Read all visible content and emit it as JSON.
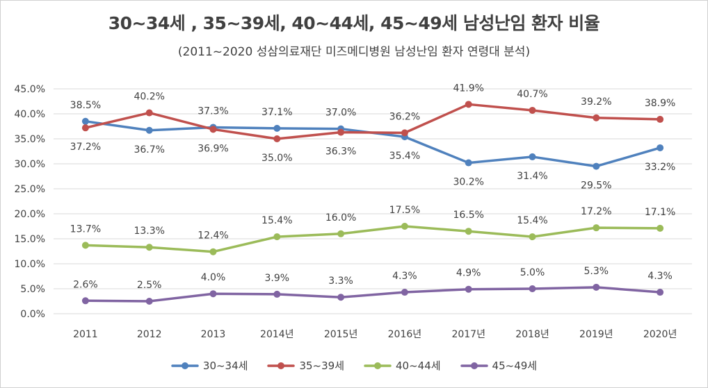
{
  "chart_data": {
    "type": "line",
    "title": "30~34세 , 35~39세, 40~44세, 45~49세 남성난임 환자 비율",
    "subtitle": "(2011~2020 성삼의료재단 미즈메디병원 남성난임 환자 연령대 분석)",
    "categories": [
      "2011",
      "2012",
      "2013",
      "2014년",
      "2015년",
      "2016년",
      "2017년",
      "2018년",
      "2019년",
      "2020년"
    ],
    "ylim": [
      0,
      45
    ],
    "yticks": [
      0,
      5,
      10,
      15,
      20,
      25,
      30,
      35,
      40,
      45
    ],
    "ytick_labels": [
      "0.0%",
      "5.0%",
      "10.0%",
      "15.0%",
      "20.0%",
      "25.0%",
      "30.0%",
      "35.0%",
      "40.0%",
      "45.0%"
    ],
    "grid": true,
    "legend_position": "bottom",
    "series": [
      {
        "name": "30~34세",
        "color": "#4f81bd",
        "values": [
          38.5,
          36.7,
          37.3,
          37.1,
          37.0,
          35.4,
          30.2,
          31.4,
          29.5,
          33.2
        ],
        "labels": [
          "38.5%",
          "36.7%",
          "37.3%",
          "37.1%",
          "37.0%",
          "35.4%",
          "30.2%",
          "31.4%",
          "29.5%",
          "33.2%"
        ],
        "label_pos": [
          "above",
          "below",
          "above",
          "above",
          "above",
          "below",
          "below",
          "below",
          "below",
          "below"
        ]
      },
      {
        "name": "35~39세",
        "color": "#c0504d",
        "values": [
          37.2,
          40.2,
          36.9,
          35.0,
          36.3,
          36.2,
          41.9,
          40.7,
          39.2,
          38.9
        ],
        "labels": [
          "37.2%",
          "40.2%",
          "36.9%",
          "35.0%",
          "36.3%",
          "36.2%",
          "41.9%",
          "40.7%",
          "39.2%",
          "38.9%"
        ],
        "label_pos": [
          "below",
          "above",
          "below",
          "below",
          "below",
          "above",
          "above",
          "above",
          "above",
          "above"
        ]
      },
      {
        "name": "40~44세",
        "color": "#9bbb59",
        "values": [
          13.7,
          13.3,
          12.4,
          15.4,
          16.0,
          17.5,
          16.5,
          15.4,
          17.2,
          17.1
        ],
        "labels": [
          "13.7%",
          "13.3%",
          "12.4%",
          "15.4%",
          "16.0%",
          "17.5%",
          "16.5%",
          "15.4%",
          "17.2%",
          "17.1%"
        ],
        "label_pos": [
          "above",
          "above",
          "above",
          "above",
          "above",
          "above",
          "above",
          "above",
          "above",
          "above"
        ]
      },
      {
        "name": "45~49세",
        "color": "#8064a2",
        "values": [
          2.6,
          2.5,
          4.0,
          3.9,
          3.3,
          4.3,
          4.9,
          5.0,
          5.3,
          4.3
        ],
        "labels": [
          "2.6%",
          "2.5%",
          "4.0%",
          "3.9%",
          "3.3%",
          "4.3%",
          "4.9%",
          "5.0%",
          "5.3%",
          "4.3%"
        ],
        "label_pos": [
          "above",
          "above",
          "above",
          "above",
          "above",
          "above",
          "above",
          "above",
          "above",
          "above"
        ]
      }
    ]
  }
}
